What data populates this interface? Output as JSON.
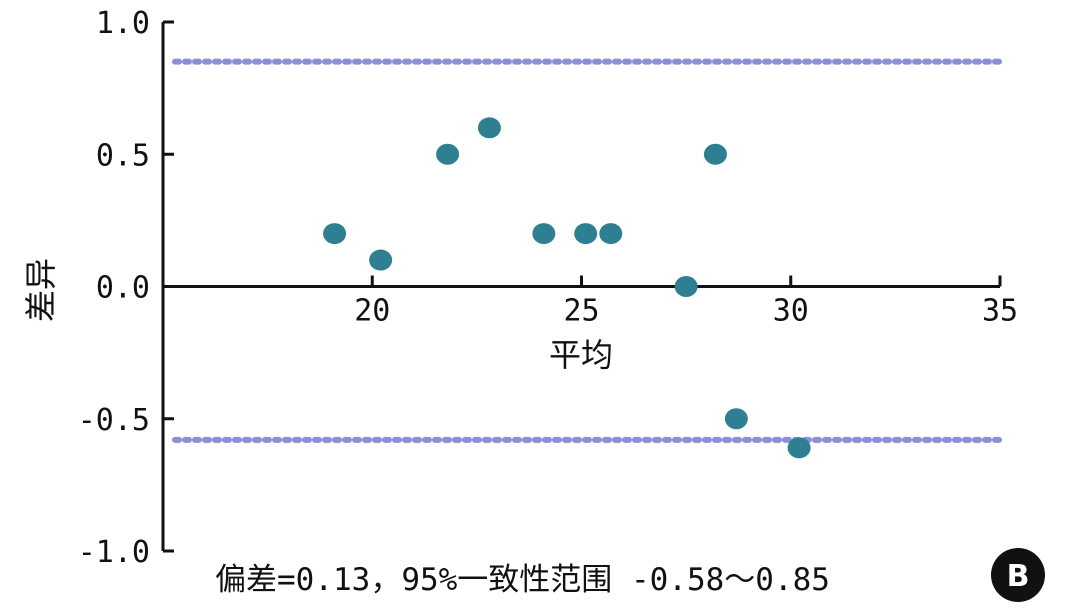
{
  "chart_data": {
    "type": "scatter",
    "title": "",
    "xlabel": "平均",
    "ylabel": "差异",
    "xlim": [
      15,
      35
    ],
    "ylim": [
      -1.0,
      1.0
    ],
    "xticks": [
      "20",
      "25",
      "30",
      "35"
    ],
    "yticks": [
      "1.0",
      "0.5",
      "0.0",
      "-0.5",
      "-1.0"
    ],
    "points": [
      {
        "x": 19.1,
        "y": 0.2
      },
      {
        "x": 20.2,
        "y": 0.1
      },
      {
        "x": 21.8,
        "y": 0.5
      },
      {
        "x": 22.8,
        "y": 0.6
      },
      {
        "x": 24.1,
        "y": 0.2
      },
      {
        "x": 25.1,
        "y": 0.2
      },
      {
        "x": 25.7,
        "y": 0.2
      },
      {
        "x": 27.5,
        "y": 0.0
      },
      {
        "x": 28.2,
        "y": 0.5
      },
      {
        "x": 28.7,
        "y": -0.5
      },
      {
        "x": 30.2,
        "y": -0.61
      }
    ],
    "reference_lines": [
      {
        "y": 0.85,
        "style": "dotted"
      },
      {
        "y": -0.58,
        "style": "dotted"
      }
    ],
    "caption": "偏差=0.13，95%一致性范围 -0.58～0.85",
    "badge": "B",
    "colors": {
      "point": "#2f7f93",
      "reference_line": "#8a8fd6",
      "axis": "#111111"
    }
  }
}
